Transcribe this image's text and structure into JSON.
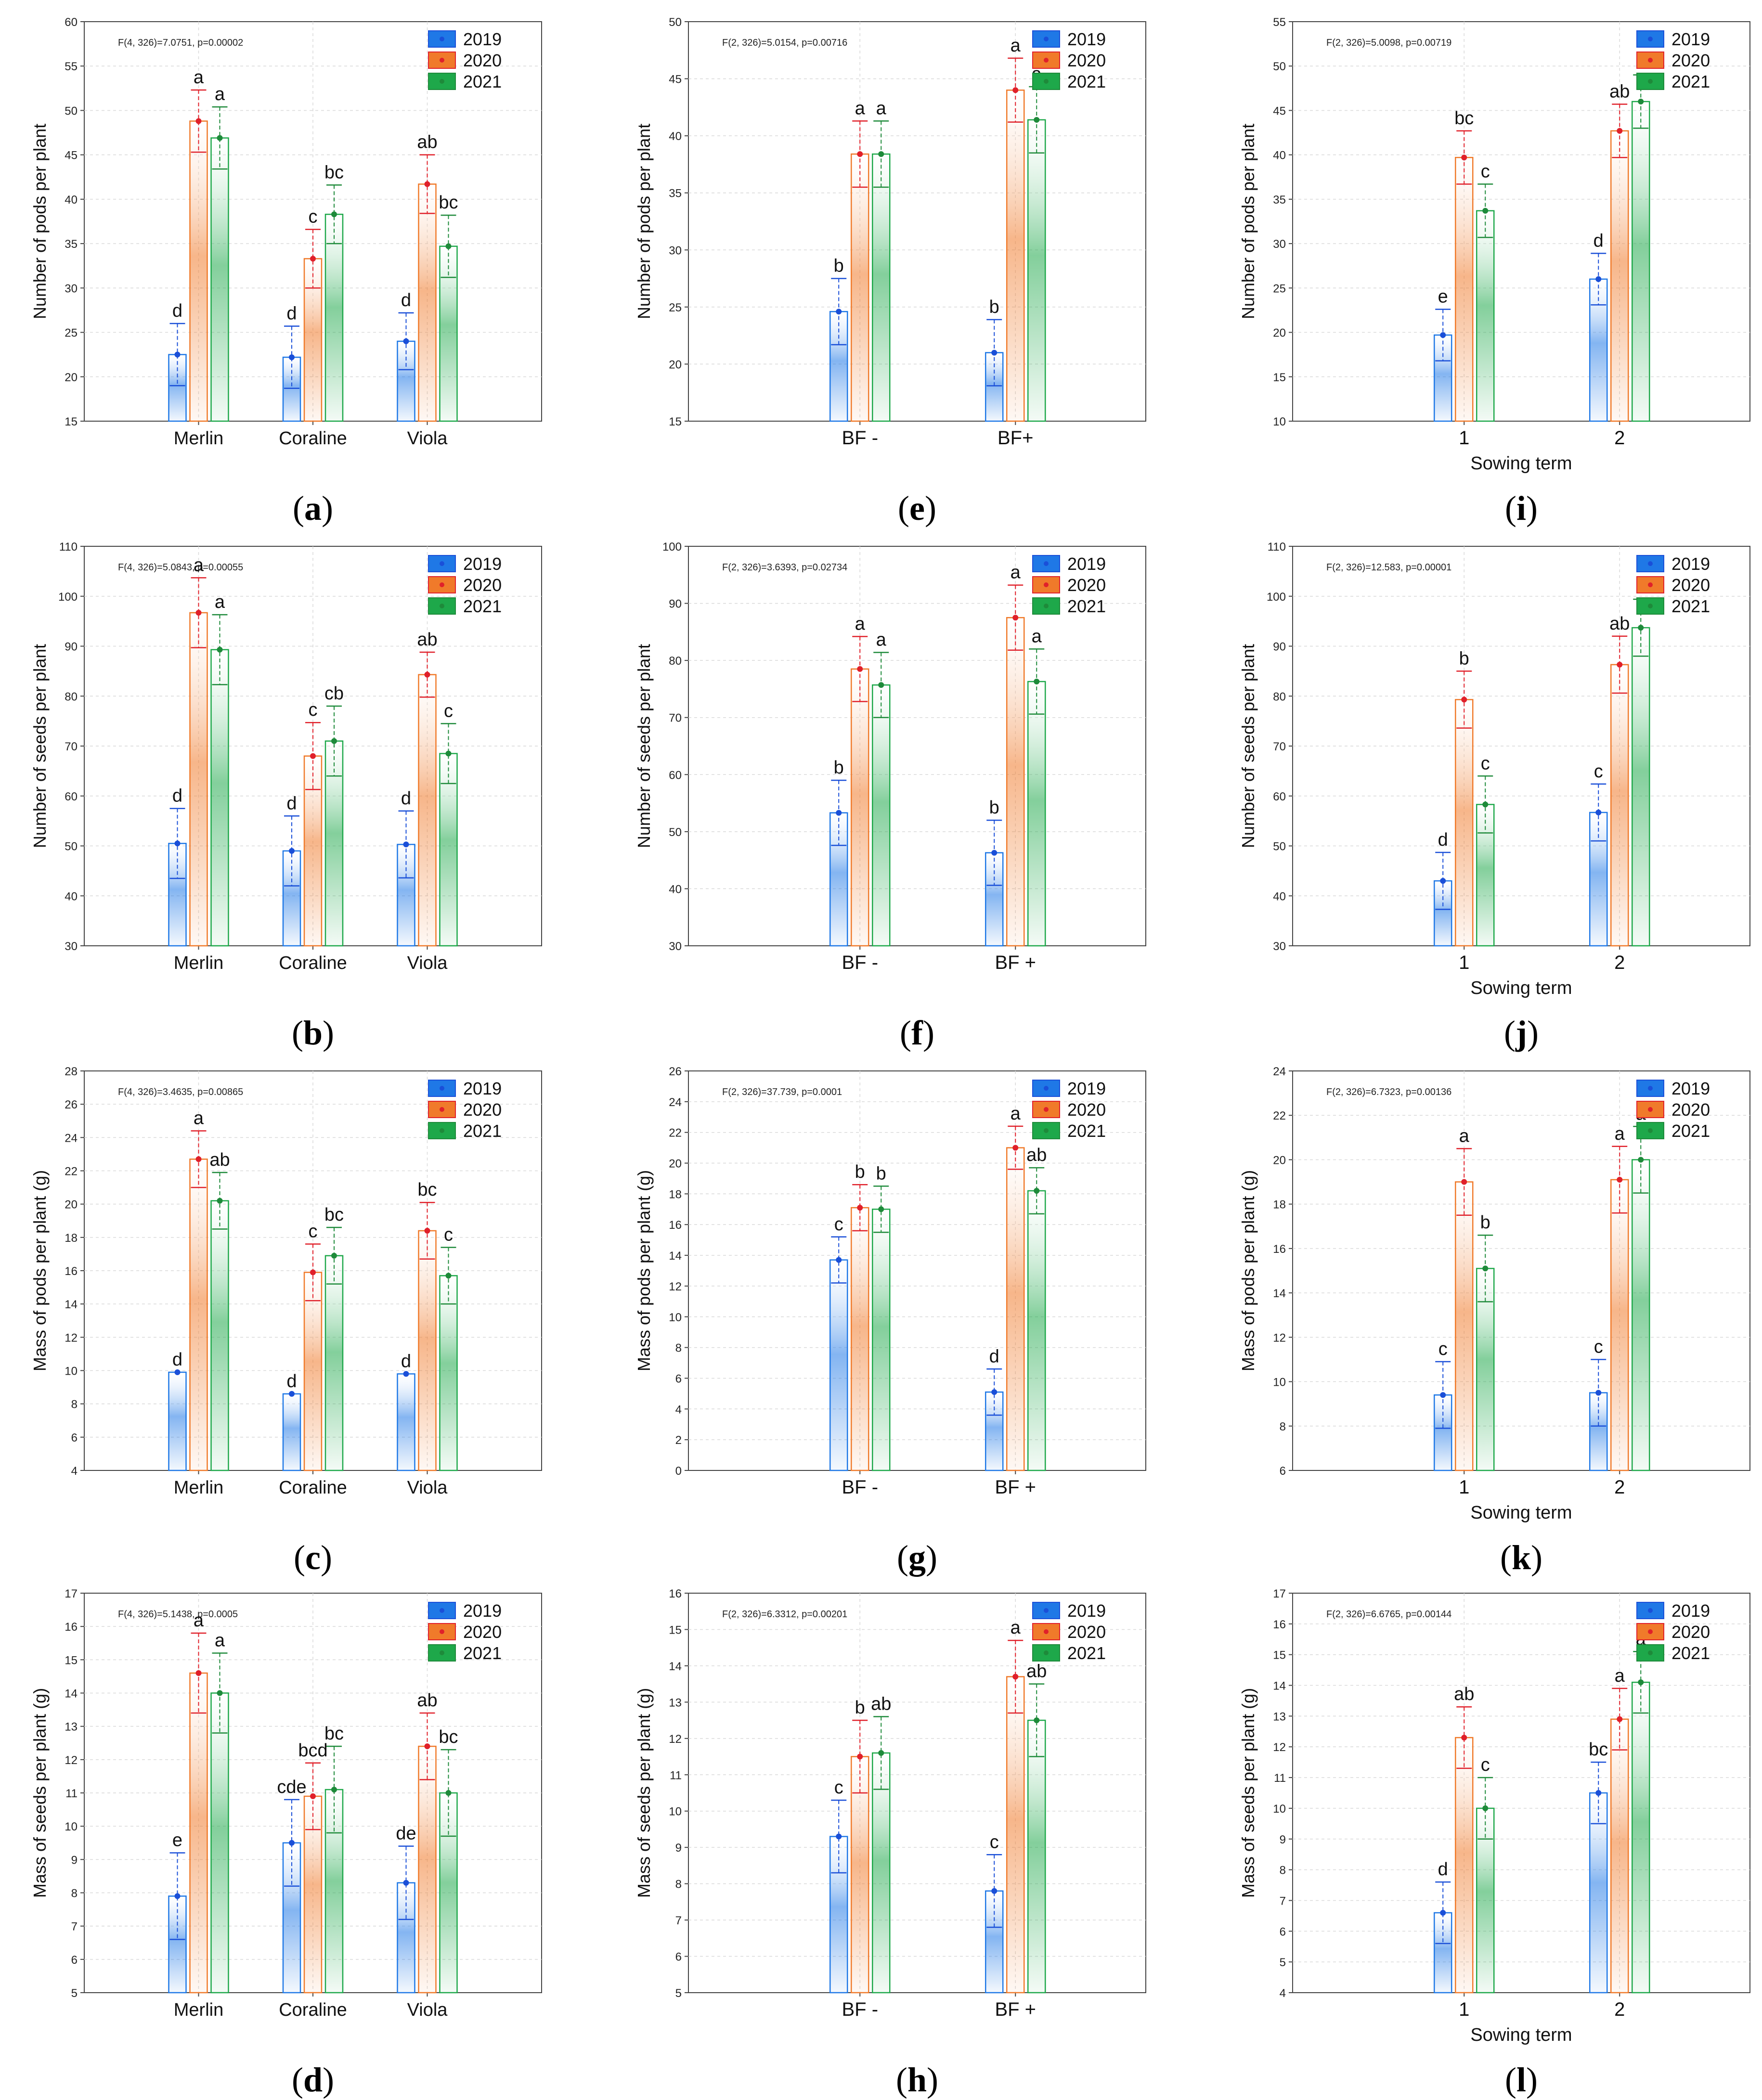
{
  "colors": {
    "2019": "#1f78e6",
    "2020": "#f07a2a",
    "2021": "#1ea84a",
    "error_2019": "#1a4fd8",
    "error_2020": "#e0202a",
    "error_2021": "#1e8a3a"
  },
  "chart_data": [
    {
      "id": "a",
      "type": "bar",
      "caption": "a",
      "stats": "F(4, 326)=7.0751, p=0.00002",
      "ylabel": "Number of pods per plant",
      "xlabel": "",
      "ylim": [
        15,
        60
      ],
      "yticks": [
        15,
        20,
        25,
        30,
        35,
        40,
        45,
        50,
        55,
        60
      ],
      "categories": [
        "Merlin",
        "Coraline",
        "Viola"
      ],
      "series": [
        {
          "name": "2019",
          "values": [
            22.5,
            22.2,
            24.0
          ],
          "errors": [
            3.5,
            3.5,
            3.2
          ]
        },
        {
          "name": "2020",
          "values": [
            48.8,
            33.3,
            41.7
          ],
          "errors": [
            3.5,
            3.3,
            3.3
          ]
        },
        {
          "name": "2021",
          "values": [
            46.9,
            38.3,
            34.7
          ],
          "errors": [
            3.5,
            3.3,
            3.5
          ]
        }
      ],
      "letters": [
        [
          "d",
          "d",
          "d"
        ],
        [
          "a",
          "c",
          "ab"
        ],
        [
          "a",
          "bc",
          "bc"
        ]
      ]
    },
    {
      "id": "e",
      "type": "bar",
      "caption": "e",
      "stats": "F(2, 326)=5.0154, p=0.00716",
      "ylabel": "Number of pods per plant",
      "xlabel": "",
      "ylim": [
        15,
        50
      ],
      "yticks": [
        15,
        20,
        25,
        30,
        35,
        40,
        45,
        50
      ],
      "categories": [
        "BF -",
        "BF+"
      ],
      "series": [
        {
          "name": "2019",
          "values": [
            24.6,
            21.0
          ],
          "errors": [
            2.9,
            2.9
          ]
        },
        {
          "name": "2020",
          "values": [
            38.4,
            44.0
          ],
          "errors": [
            2.9,
            2.8
          ]
        },
        {
          "name": "2021",
          "values": [
            38.4,
            41.4
          ],
          "errors": [
            2.9,
            2.9
          ]
        }
      ],
      "letters": [
        [
          "b",
          "b"
        ],
        [
          "a",
          "a"
        ],
        [
          "a",
          "a"
        ]
      ]
    },
    {
      "id": "i",
      "type": "bar",
      "caption": "i",
      "stats": "F(2, 326)=5.0098, p=0.00719",
      "ylabel": "Number of pods per plant",
      "xlabel": "Sowing term",
      "ylim": [
        10,
        55
      ],
      "yticks": [
        10,
        15,
        20,
        25,
        30,
        35,
        40,
        45,
        50,
        55
      ],
      "categories": [
        "1",
        "2"
      ],
      "series": [
        {
          "name": "2019",
          "values": [
            19.7,
            26.0
          ],
          "errors": [
            2.9,
            2.9
          ]
        },
        {
          "name": "2020",
          "values": [
            39.7,
            42.7
          ],
          "errors": [
            3.0,
            3.0
          ]
        },
        {
          "name": "2021",
          "values": [
            33.7,
            46.0
          ],
          "errors": [
            3.0,
            3.0
          ]
        }
      ],
      "letters": [
        [
          "e",
          "d"
        ],
        [
          "bc",
          "ab"
        ],
        [
          "c",
          "a"
        ]
      ]
    },
    {
      "id": "b",
      "type": "bar",
      "caption": "b",
      "stats": "F(4, 326)=5.0843, p=0.00055",
      "ylabel": "Number of seeds per plant",
      "xlabel": "",
      "ylim": [
        30,
        110
      ],
      "yticks": [
        30,
        40,
        50,
        60,
        70,
        80,
        90,
        100,
        110
      ],
      "categories": [
        "Merlin",
        "Coraline",
        "Viola"
      ],
      "series": [
        {
          "name": "2019",
          "values": [
            50.5,
            49.0,
            50.3
          ],
          "errors": [
            7.0,
            7.0,
            6.7
          ]
        },
        {
          "name": "2020",
          "values": [
            96.7,
            68.0,
            84.3
          ],
          "errors": [
            7.0,
            6.7,
            4.5
          ]
        },
        {
          "name": "2021",
          "values": [
            89.3,
            71.0,
            68.5
          ],
          "errors": [
            7.0,
            7.0,
            6.0
          ]
        }
      ],
      "letters": [
        [
          "d",
          "d",
          "d"
        ],
        [
          "a",
          "c",
          "ab"
        ],
        [
          "a",
          "cb",
          "c"
        ]
      ]
    },
    {
      "id": "f",
      "type": "bar",
      "caption": "f",
      "stats": "F(2, 326)=3.6393, p=0.02734",
      "ylabel": "Number of seeds per plant",
      "xlabel": "",
      "ylim": [
        30,
        100
      ],
      "yticks": [
        30,
        40,
        50,
        60,
        70,
        80,
        90,
        100
      ],
      "categories": [
        "BF -",
        "BF +"
      ],
      "series": [
        {
          "name": "2019",
          "values": [
            53.3,
            46.3
          ],
          "errors": [
            5.7,
            5.7
          ]
        },
        {
          "name": "2020",
          "values": [
            78.5,
            87.5
          ],
          "errors": [
            5.7,
            5.7
          ]
        },
        {
          "name": "2021",
          "values": [
            75.7,
            76.3
          ],
          "errors": [
            5.7,
            5.7
          ]
        }
      ],
      "letters": [
        [
          "b",
          "b"
        ],
        [
          "a",
          "a"
        ],
        [
          "a",
          "a"
        ]
      ]
    },
    {
      "id": "j",
      "type": "bar",
      "caption": "j",
      "stats": "F(2, 326)=12.583, p=0.00001",
      "ylabel": "Number of seeds per plant",
      "xlabel": "Sowing term",
      "ylim": [
        30,
        110
      ],
      "yticks": [
        30,
        40,
        50,
        60,
        70,
        80,
        90,
        100,
        110
      ],
      "categories": [
        "1",
        "2"
      ],
      "series": [
        {
          "name": "2019",
          "values": [
            43.0,
            56.7
          ],
          "errors": [
            5.7,
            5.7
          ]
        },
        {
          "name": "2020",
          "values": [
            79.3,
            86.3
          ],
          "errors": [
            5.7,
            5.7
          ]
        },
        {
          "name": "2021",
          "values": [
            58.3,
            93.7
          ],
          "errors": [
            5.7,
            5.7
          ]
        }
      ],
      "letters": [
        [
          "d",
          "c"
        ],
        [
          "b",
          "ab"
        ],
        [
          "c",
          "a"
        ]
      ]
    },
    {
      "id": "c",
      "type": "bar",
      "caption": "c",
      "stats": "F(4, 326)=3.4635, p=0.00865",
      "ylabel": "Mass of pods per plant (g)",
      "xlabel": "",
      "ylim": [
        4,
        28
      ],
      "yticks": [
        4,
        6,
        8,
        10,
        12,
        14,
        16,
        18,
        20,
        22,
        24,
        26,
        28
      ],
      "categories": [
        "Merlin",
        "Coraline",
        "Viola"
      ],
      "series": [
        {
          "name": "2019",
          "values": [
            9.9,
            8.6,
            9.8
          ],
          "errors": [
            0,
            0,
            0
          ]
        },
        {
          "name": "2020",
          "values": [
            22.7,
            15.9,
            18.4
          ],
          "errors": [
            1.7,
            1.7,
            1.7
          ]
        },
        {
          "name": "2021",
          "values": [
            20.2,
            16.9,
            15.7
          ],
          "errors": [
            1.7,
            1.7,
            1.7
          ]
        }
      ],
      "letters": [
        [
          "d",
          "d",
          "d"
        ],
        [
          "a",
          "c",
          "bc"
        ],
        [
          "ab",
          "bc",
          "c"
        ]
      ]
    },
    {
      "id": "g",
      "type": "bar",
      "caption": "g",
      "stats": "F(2, 326)=37.739, p=0.0001",
      "ylabel": "Mass of pods per plant (g)",
      "xlabel": "",
      "ylim": [
        0,
        26
      ],
      "yticks": [
        0,
        2,
        4,
        6,
        8,
        10,
        12,
        14,
        16,
        18,
        20,
        22,
        24,
        26
      ],
      "categories": [
        "BF -",
        "BF +"
      ],
      "series": [
        {
          "name": "2019",
          "values": [
            13.7,
            5.1
          ],
          "errors": [
            1.5,
            1.5
          ]
        },
        {
          "name": "2020",
          "values": [
            17.1,
            21.0
          ],
          "errors": [
            1.5,
            1.4
          ]
        },
        {
          "name": "2021",
          "values": [
            17.0,
            18.2
          ],
          "errors": [
            1.5,
            1.5
          ]
        }
      ],
      "letters": [
        [
          "c",
          "d"
        ],
        [
          "b",
          "a"
        ],
        [
          "b",
          "ab"
        ]
      ]
    },
    {
      "id": "k",
      "type": "bar",
      "caption": "k",
      "stats": "F(2, 326)=6.7323, p=0.00136",
      "ylabel": "Mass of pods per plant (g)",
      "xlabel": "Sowing term",
      "ylim": [
        6,
        24
      ],
      "yticks": [
        6,
        8,
        10,
        12,
        14,
        16,
        18,
        20,
        22,
        24
      ],
      "categories": [
        "1",
        "2"
      ],
      "series": [
        {
          "name": "2019",
          "values": [
            9.4,
            9.5
          ],
          "errors": [
            1.5,
            1.5
          ]
        },
        {
          "name": "2020",
          "values": [
            19.0,
            19.1
          ],
          "errors": [
            1.5,
            1.5
          ]
        },
        {
          "name": "2021",
          "values": [
            15.1,
            20.0
          ],
          "errors": [
            1.5,
            1.5
          ]
        }
      ],
      "letters": [
        [
          "c",
          "c"
        ],
        [
          "a",
          "a"
        ],
        [
          "b",
          "a"
        ]
      ]
    },
    {
      "id": "d",
      "type": "bar",
      "caption": "d",
      "stats": "F(4, 326)=5.1438, p=0.0005",
      "ylabel": "Mass of seeds per plant (g)",
      "xlabel": "",
      "ylim": [
        5,
        17
      ],
      "yticks": [
        5,
        6,
        7,
        8,
        9,
        10,
        11,
        12,
        13,
        14,
        15,
        16,
        17
      ],
      "categories": [
        "Merlin",
        "Coraline",
        "Viola"
      ],
      "series": [
        {
          "name": "2019",
          "values": [
            7.9,
            9.5,
            8.3
          ],
          "errors": [
            1.3,
            1.3,
            1.1
          ]
        },
        {
          "name": "2020",
          "values": [
            14.6,
            10.9,
            12.4
          ],
          "errors": [
            1.2,
            1.0,
            1.0
          ]
        },
        {
          "name": "2021",
          "values": [
            14.0,
            11.1,
            11.0
          ],
          "errors": [
            1.2,
            1.3,
            1.3
          ]
        }
      ],
      "letters": [
        [
          "e",
          "cde",
          "de"
        ],
        [
          "a",
          "bcd",
          "ab"
        ],
        [
          "a",
          "bc",
          "bc"
        ]
      ]
    },
    {
      "id": "h",
      "type": "bar",
      "caption": "h",
      "stats": "F(2, 326)=6.3312, p=0.00201",
      "ylabel": "Mass of seeds per plant (g)",
      "xlabel": "",
      "ylim": [
        5,
        16
      ],
      "yticks": [
        5,
        6,
        7,
        8,
        9,
        10,
        11,
        12,
        13,
        14,
        15,
        16
      ],
      "categories": [
        "BF -",
        "BF +"
      ],
      "series": [
        {
          "name": "2019",
          "values": [
            9.3,
            7.8
          ],
          "errors": [
            1.0,
            1.0
          ]
        },
        {
          "name": "2020",
          "values": [
            11.5,
            13.7
          ],
          "errors": [
            1.0,
            1.0
          ]
        },
        {
          "name": "2021",
          "values": [
            11.6,
            12.5
          ],
          "errors": [
            1.0,
            1.0
          ]
        }
      ],
      "letters": [
        [
          "c",
          "c"
        ],
        [
          "b",
          "a"
        ],
        [
          "ab",
          "ab"
        ]
      ]
    },
    {
      "id": "l",
      "type": "bar",
      "caption": "l",
      "stats": "F(2, 326)=6.6765, p=0.00144",
      "ylabel": "Mass of seeds per plant (g)",
      "xlabel": "Sowing term",
      "ylim": [
        4,
        17
      ],
      "yticks": [
        4,
        5,
        6,
        7,
        8,
        9,
        10,
        11,
        12,
        13,
        14,
        15,
        16,
        17
      ],
      "categories": [
        "1",
        "2"
      ],
      "series": [
        {
          "name": "2019",
          "values": [
            6.6,
            10.5
          ],
          "errors": [
            1.0,
            1.0
          ]
        },
        {
          "name": "2020",
          "values": [
            12.3,
            12.9
          ],
          "errors": [
            1.0,
            1.0
          ]
        },
        {
          "name": "2021",
          "values": [
            10.0,
            14.1
          ],
          "errors": [
            1.0,
            1.0
          ]
        }
      ],
      "letters": [
        [
          "d",
          "bc"
        ],
        [
          "ab",
          "a"
        ],
        [
          "c",
          "a"
        ]
      ]
    }
  ]
}
